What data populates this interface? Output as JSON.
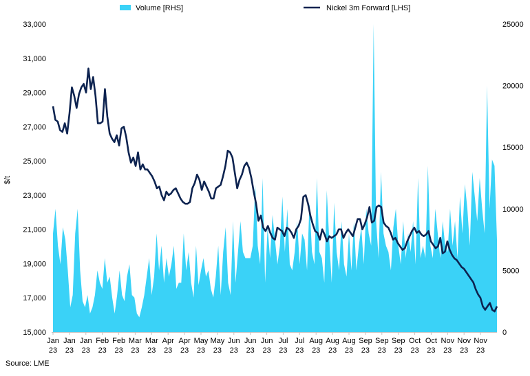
{
  "chart_data": {
    "type": "line",
    "title": "",
    "source": "Source: LME",
    "ylabel_left": "$/t",
    "ylabel_right": "",
    "legend": [
      "Volume [RHS]",
      "Nickel 3m Forward [LHS]"
    ],
    "legend_position": "top",
    "grid": false,
    "ylim_left": [
      15000,
      33000
    ],
    "yticks_left": [
      "15,000",
      "17,000",
      "19,000",
      "21,000",
      "23,000",
      "25,000",
      "27,000",
      "29,000",
      "31,000",
      "33,000"
    ],
    "ylim_right": [
      0,
      25000
    ],
    "yticks_right": [
      "0",
      "5000",
      "10000",
      "15000",
      "20000",
      "25000"
    ],
    "xticks": [
      {
        "month": "Jan",
        "year": "23"
      },
      {
        "month": "Jan",
        "year": "23"
      },
      {
        "month": "Jan",
        "year": "23"
      },
      {
        "month": "Feb",
        "year": "23"
      },
      {
        "month": "Feb",
        "year": "23"
      },
      {
        "month": "Mar",
        "year": "23"
      },
      {
        "month": "Mar",
        "year": "23"
      },
      {
        "month": "Apr",
        "year": "23"
      },
      {
        "month": "Apr",
        "year": "23"
      },
      {
        "month": "May",
        "year": "23"
      },
      {
        "month": "May",
        "year": "23"
      },
      {
        "month": "Jun",
        "year": "23"
      },
      {
        "month": "Jun",
        "year": "23"
      },
      {
        "month": "Jun",
        "year": "23"
      },
      {
        "month": "Jul",
        "year": "23"
      },
      {
        "month": "Jul",
        "year": "23"
      },
      {
        "month": "Aug",
        "year": "23"
      },
      {
        "month": "Aug",
        "year": "23"
      },
      {
        "month": "Aug",
        "year": "23"
      },
      {
        "month": "Sep",
        "year": "23"
      },
      {
        "month": "Sep",
        "year": "23"
      },
      {
        "month": "Sep",
        "year": "23"
      },
      {
        "month": "Oct",
        "year": "23"
      },
      {
        "month": "Oct",
        "year": "23"
      },
      {
        "month": "Nov",
        "year": "23"
      },
      {
        "month": "Nov",
        "year": "23"
      },
      {
        "month": "Nov",
        "year": "23"
      }
    ],
    "series": [
      {
        "name": "Volume [RHS]",
        "type": "area",
        "axis": "right",
        "color": "#3ad2f7",
        "values": [
          8000,
          10000,
          7000,
          5500,
          8500,
          7500,
          5000,
          2000,
          3000,
          8000,
          10000,
          5000,
          2500,
          2000,
          3000,
          1500,
          2000,
          3000,
          5000,
          4000,
          3500,
          6000,
          4000,
          4500,
          2800,
          1500,
          3000,
          5000,
          3000,
          2500,
          4500,
          5500,
          3000,
          2800,
          1500,
          1200,
          2000,
          3000,
          4500,
          6000,
          3000,
          4500,
          8000,
          5000,
          7000,
          4000,
          6000,
          4500,
          5500,
          7000,
          3500,
          4000,
          4000,
          8000,
          5000,
          6500,
          4000,
          2800,
          7000,
          3800,
          5000,
          6000,
          4500,
          5000,
          3500,
          2800,
          4500,
          7000,
          3000,
          6500,
          8500,
          4000,
          3000,
          9000,
          4000,
          6500,
          9000,
          6500,
          6000,
          6000,
          6000,
          7000,
          12000,
          7000,
          5500,
          12500,
          4000,
          8500,
          6000,
          9500,
          7500,
          5500,
          7000,
          11000,
          6500,
          10000,
          5500,
          5000,
          6500,
          9000,
          5500,
          8000,
          7500,
          5000,
          10500,
          6500,
          5500,
          12500,
          6500,
          6000,
          4000,
          11500,
          7500,
          4000,
          10500,
          6500,
          5000,
          9000,
          5500,
          4500,
          8000,
          5000,
          9000,
          5000,
          7000,
          8500,
          5500,
          10000,
          8000,
          7000,
          25000,
          9000,
          6000,
          13000,
          8000,
          7000,
          6500,
          5000,
          8500,
          10000,
          7000,
          5500,
          9000,
          6000,
          8000,
          6500,
          9000,
          5500,
          12500,
          6000,
          7000,
          6000,
          13500,
          7000,
          6000,
          10000,
          8000,
          6000,
          9000,
          7000,
          6500,
          10000,
          7000,
          9000,
          6000,
          11000,
          8000,
          12000,
          10000,
          7000,
          13000,
          11000,
          9000,
          12500,
          10000,
          8000,
          20000,
          10000,
          14000,
          13500,
          7500
        ],
        "note": "approximate daily volume, read off the right axis"
      },
      {
        "name": "Nickel 3m Forward [LHS]",
        "type": "line",
        "axis": "left",
        "color": "#0d2350",
        "values": [
          28200,
          27400,
          27300,
          26800,
          26700,
          27200,
          26600,
          27800,
          29300,
          28800,
          28100,
          28900,
          29300,
          29500,
          29000,
          30400,
          29200,
          29900,
          28800,
          27200,
          27200,
          27300,
          29200,
          27600,
          26600,
          26300,
          26100,
          26500,
          25900,
          26900,
          27000,
          26400,
          25500,
          24900,
          25200,
          24700,
          25500,
          24500,
          24800,
          24500,
          24500,
          24300,
          24100,
          23800,
          23400,
          23500,
          23000,
          22700,
          23200,
          23000,
          23100,
          23300,
          23400,
          23100,
          22800,
          22600,
          22500,
          22500,
          22600,
          23400,
          23700,
          24200,
          23900,
          23300,
          23800,
          23500,
          23200,
          22800,
          22800,
          23400,
          23500,
          23600,
          24100,
          24700,
          25600,
          25500,
          25200,
          24300,
          23400,
          23900,
          24200,
          24700,
          24900,
          24600,
          24000,
          23200,
          22500,
          21500,
          21800,
          21100,
          20900,
          21200,
          20800,
          20500,
          20400,
          21100,
          21000,
          20900,
          20600,
          21100,
          21000,
          20800,
          20500,
          21000,
          21200,
          21600,
          22900,
          23000,
          22500,
          21800,
          21300,
          20900,
          20800,
          20400,
          21000,
          20700,
          20300,
          20600,
          20500,
          20600,
          20700,
          21000,
          21000,
          20500,
          20800,
          21000,
          20800,
          20600,
          21100,
          21600,
          21600,
          21000,
          21300,
          21700,
          22300,
          21400,
          21500,
          22300,
          22400,
          22300,
          21400,
          21200,
          21100,
          20800,
          20400,
          20500,
          20200,
          20000,
          19800,
          19900,
          20300,
          20600,
          20900,
          21100,
          20800,
          20900,
          20700,
          20600,
          20700,
          20900,
          20300,
          20100,
          19900,
          20000,
          20500,
          19600,
          19700,
          20300,
          19800,
          19500,
          19300,
          19200,
          19000,
          18800,
          18700,
          18500,
          18300,
          18100,
          17900,
          17500,
          17200,
          17000,
          16500,
          16300,
          16500,
          16700,
          16300,
          16200,
          16500
        ]
      }
    ]
  },
  "colors": {
    "volume_area": "#3ad2f7",
    "nickel_line": "#0d2350"
  }
}
